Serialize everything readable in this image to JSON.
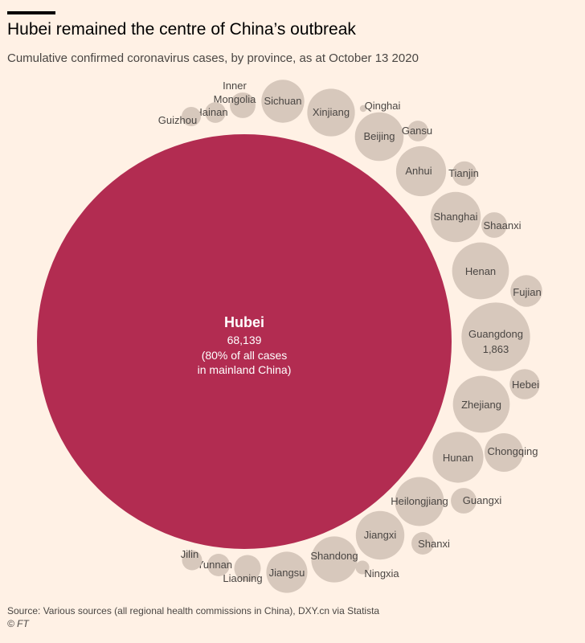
{
  "header": {
    "title": "Hubei remained the centre of China’s outbreak",
    "subtitle": "Cumulative confirmed coronavirus cases, by province, as at October 13 2020"
  },
  "footer": {
    "source": "Source: Various sources (all regional health commissions in China), DXY.cn via Statista",
    "copyright": "© FT"
  },
  "colors": {
    "background": "#fff1e5",
    "highlight": "#b22c51",
    "bubble": "#d7c8bc",
    "label": "#4a4643"
  },
  "chart_data": {
    "type": "bubble",
    "title": "Hubei remained the centre of China’s outbreak",
    "subtitle": "Cumulative confirmed coronavirus cases, by province, as at October 13 2020",
    "layout": "packed circles, area proportional to value",
    "highlight": {
      "name": "Hubei",
      "value": 68139,
      "value_label": "68,139",
      "note_lines": [
        "(80% of all cases",
        "in mainland China)"
      ]
    },
    "provinces": [
      {
        "name": "Guangdong",
        "value": 1863,
        "value_label": "1,863"
      },
      {
        "name": "Henan",
        "value": 1280
      },
      {
        "name": "Zhejiang",
        "value": 1280
      },
      {
        "name": "Hunan",
        "value": 1020
      },
      {
        "name": "Shanghai",
        "value": 1000
      },
      {
        "name": "Heilongjiang",
        "value": 950
      },
      {
        "name": "Anhui",
        "value": 990
      },
      {
        "name": "Jiangxi",
        "value": 935
      },
      {
        "name": "Beijing",
        "value": 940
      },
      {
        "name": "Shandong",
        "value": 840
      },
      {
        "name": "Sichuan",
        "value": 730
      },
      {
        "name": "Jiangsu",
        "value": 670
      },
      {
        "name": "Xinjiang",
        "value": 900
      },
      {
        "name": "Chongqing",
        "value": 590
      },
      {
        "name": "Fujian",
        "value": 400
      },
      {
        "name": "Hebei",
        "value": 360
      },
      {
        "name": "Guangxi",
        "value": 260
      },
      {
        "name": "Shaanxi",
        "value": 260
      },
      {
        "name": "Liaoning",
        "value": 280
      },
      {
        "name": "Inner Mongolia",
        "value": 260
      },
      {
        "name": "Tianjin",
        "value": 240
      },
      {
        "name": "Yunnan",
        "value": 200
      },
      {
        "name": "Shanxi",
        "value": 200
      },
      {
        "name": "Hainan",
        "value": 170
      },
      {
        "name": "Gansu",
        "value": 170
      },
      {
        "name": "Jilin",
        "value": 160
      },
      {
        "name": "Guizhou",
        "value": 147
      },
      {
        "name": "Ningxia",
        "value": 75
      },
      {
        "name": "Qinghai",
        "value": 18
      }
    ]
  }
}
